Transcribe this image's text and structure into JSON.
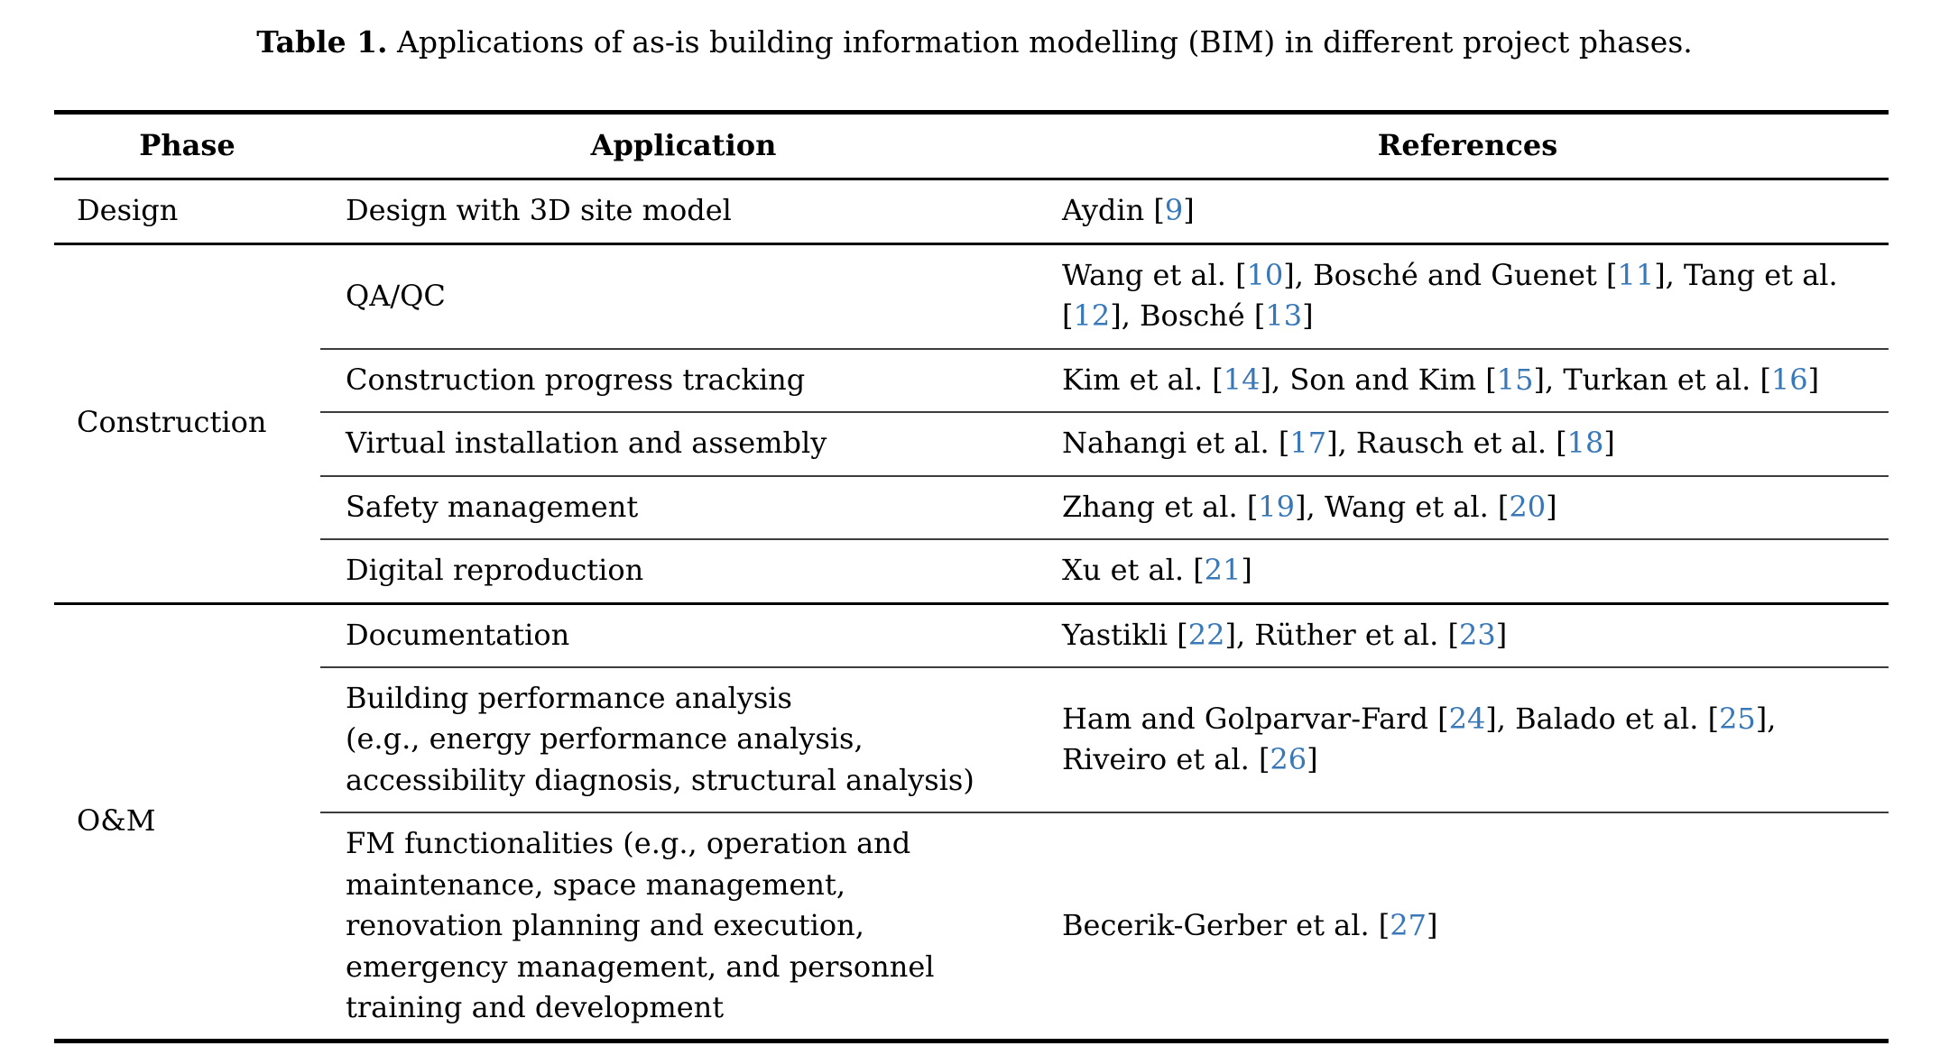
{
  "title": {
    "label": "Table 1.",
    "text": " Applications of as-is building information modelling (BIM) in different project phases."
  },
  "accent_color": "#3878b8",
  "table": {
    "headers": [
      "Phase",
      "Application",
      "References"
    ],
    "sections": [
      {
        "phase": "Design",
        "rows": [
          {
            "application": "Design with 3D site model",
            "references": [
              {
                "t": "Aydin "
              },
              {
                "c": "9"
              }
            ]
          }
        ]
      },
      {
        "phase": "Construction",
        "rows": [
          {
            "application": "QA/QC",
            "references": [
              {
                "t": "Wang et al. "
              },
              {
                "c": "10"
              },
              {
                "t": ", Bosché and Guenet "
              },
              {
                "c": "11"
              },
              {
                "t": ", Tang et al.\n"
              },
              {
                "c": "12"
              },
              {
                "t": ", Bosché "
              },
              {
                "c": "13"
              }
            ]
          },
          {
            "application": "Construction progress tracking",
            "references": [
              {
                "t": "Kim et al. "
              },
              {
                "c": "14"
              },
              {
                "t": ", Son and Kim "
              },
              {
                "c": "15"
              },
              {
                "t": ", Turkan et al. "
              },
              {
                "c": "16"
              }
            ]
          },
          {
            "application": "Virtual installation and assembly",
            "references": [
              {
                "t": "Nahangi et al. "
              },
              {
                "c": "17"
              },
              {
                "t": ", Rausch et al. "
              },
              {
                "c": "18"
              }
            ]
          },
          {
            "application": "Safety management",
            "references": [
              {
                "t": "Zhang et al. "
              },
              {
                "c": "19"
              },
              {
                "t": ", Wang et al. "
              },
              {
                "c": "20"
              }
            ]
          },
          {
            "application": "Digital reproduction",
            "references": [
              {
                "t": "Xu et al. "
              },
              {
                "c": "21"
              }
            ]
          }
        ]
      },
      {
        "phase": "O&M",
        "rows": [
          {
            "application": "Documentation",
            "references": [
              {
                "t": "Yastikli "
              },
              {
                "c": "22"
              },
              {
                "t": ", Rüther et al. "
              },
              {
                "c": "23"
              }
            ]
          },
          {
            "application": "Building performance analysis\n(e.g., energy performance analysis,\naccessibility diagnosis, structural analysis)",
            "references": [
              {
                "t": "Ham and Golparvar-Fard "
              },
              {
                "c": "24"
              },
              {
                "t": ", Balado et al. "
              },
              {
                "c": "25"
              },
              {
                "t": ",\nRiveiro et al. "
              },
              {
                "c": "26"
              }
            ]
          },
          {
            "application": "FM functionalities (e.g., operation and\nmaintenance, space management,\nrenovation planning and execution,\nemergency management, and personnel\ntraining and development",
            "references": [
              {
                "t": "Becerik-Gerber et al. "
              },
              {
                "c": "27"
              }
            ]
          }
        ]
      }
    ]
  }
}
